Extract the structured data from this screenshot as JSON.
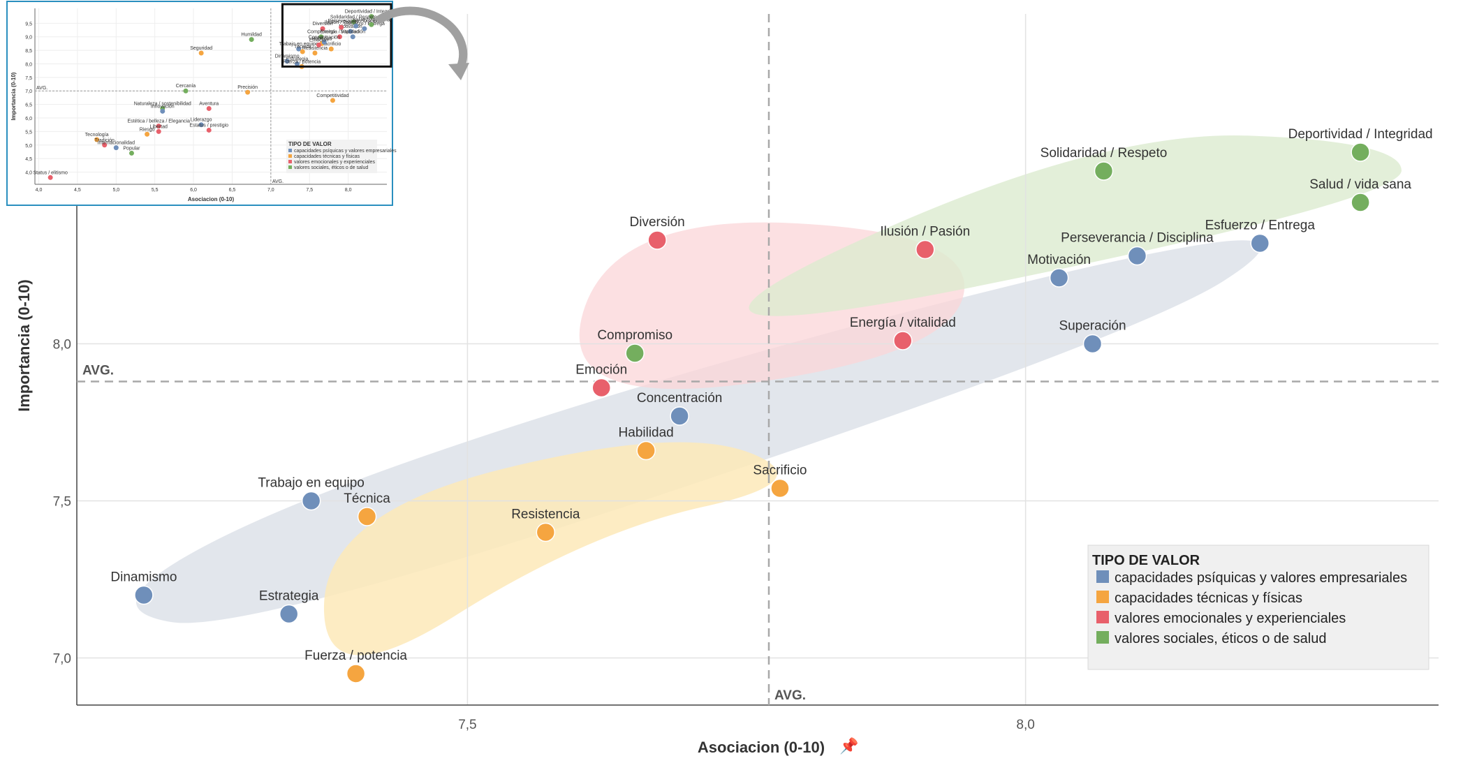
{
  "colors": {
    "blue": "#6f8fba",
    "orange": "#f5a540",
    "red": "#e8606b",
    "green": "#74ae5e",
    "hull_blue": "#d8dde6",
    "hull_orange": "#fde9b8",
    "hull_red": "#fbd6d8",
    "hull_green": "#dcebcf",
    "inset_border": "#2a8fbf"
  },
  "chart_data": {
    "type": "scatter",
    "xlabel": "Asociacion (0-10)",
    "ylabel": "Importancia (0-10)",
    "xlim": [
      7.15,
      8.37
    ],
    "ylim": [
      6.85,
      9.05
    ],
    "x_ticks": [
      {
        "value": 7.5,
        "label": "7,5"
      },
      {
        "value": 8.0,
        "label": "8,0"
      }
    ],
    "y_ticks": [
      {
        "value": 7.0,
        "label": "7,0"
      },
      {
        "value": 7.5,
        "label": "7,5"
      },
      {
        "value": 8.0,
        "label": "8,0"
      }
    ],
    "avg_x": 7.77,
    "avg_y": 7.88,
    "avg_label": "AVG.",
    "grid": true,
    "legend": {
      "title": "TIPO DE VALOR",
      "position": "bottom-right",
      "entries": [
        {
          "label": "capacidades psíquicas y valores empresariales",
          "color": "blue"
        },
        {
          "label": "capacidades técnicas y físicas",
          "color": "orange"
        },
        {
          "label": "valores emocionales y experienciales",
          "color": "red"
        },
        {
          "label": "valores sociales, éticos o de salud",
          "color": "green"
        }
      ]
    },
    "points": [
      {
        "label": "Deportividad / Integridad",
        "x": 8.3,
        "y": 8.61,
        "group": "green",
        "label_pos": "above"
      },
      {
        "label": "Solidaridad / Respeto",
        "x": 8.07,
        "y": 8.55,
        "group": "green",
        "label_pos": "above"
      },
      {
        "label": "Salud / vida sana",
        "x": 8.3,
        "y": 8.45,
        "group": "green",
        "label_pos": "above"
      },
      {
        "label": "Esfuerzo / Entrega",
        "x": 8.21,
        "y": 8.32,
        "group": "blue",
        "label_pos": "above"
      },
      {
        "label": "Perseverancia / Disciplina",
        "x": 8.1,
        "y": 8.28,
        "group": "blue",
        "label_pos": "above"
      },
      {
        "label": "Motivación",
        "x": 8.03,
        "y": 8.21,
        "group": "blue",
        "label_pos": "above"
      },
      {
        "label": "Superación",
        "x": 8.06,
        "y": 8.0,
        "group": "blue",
        "label_pos": "above"
      },
      {
        "label": "Diversión",
        "x": 7.67,
        "y": 8.33,
        "group": "red",
        "label_pos": "above"
      },
      {
        "label": "Ilusión / Pasión",
        "x": 7.91,
        "y": 8.3,
        "group": "red",
        "label_pos": "above"
      },
      {
        "label": "Energía / vitalidad",
        "x": 7.89,
        "y": 8.01,
        "group": "red",
        "label_pos": "above"
      },
      {
        "label": "Compromiso",
        "x": 7.65,
        "y": 7.97,
        "group": "green",
        "label_pos": "above"
      },
      {
        "label": "Emoción",
        "x": 7.62,
        "y": 7.86,
        "group": "red",
        "label_pos": "above"
      },
      {
        "label": "Concentración",
        "x": 7.69,
        "y": 7.77,
        "group": "blue",
        "label_pos": "above"
      },
      {
        "label": "Habilidad",
        "x": 7.66,
        "y": 7.66,
        "group": "orange",
        "label_pos": "above"
      },
      {
        "label": "Sacrificio",
        "x": 7.78,
        "y": 7.54,
        "group": "orange",
        "label_pos": "above"
      },
      {
        "label": "Resistencia",
        "x": 7.57,
        "y": 7.4,
        "group": "orange",
        "label_pos": "above"
      },
      {
        "label": "Trabajo en equipo",
        "x": 7.36,
        "y": 7.5,
        "group": "blue",
        "label_pos": "above"
      },
      {
        "label": "Técnica",
        "x": 7.41,
        "y": 7.45,
        "group": "orange",
        "label_pos": "above"
      },
      {
        "label": "Dinamismo",
        "x": 7.21,
        "y": 7.2,
        "group": "blue",
        "label_pos": "above"
      },
      {
        "label": "Estrategia",
        "x": 7.34,
        "y": 7.14,
        "group": "blue",
        "label_pos": "above"
      },
      {
        "label": "Fuerza / potencia",
        "x": 7.4,
        "y": 6.95,
        "group": "orange",
        "label_pos": "above"
      }
    ]
  },
  "inset": {
    "xlabel": "Asociacion (0-10)",
    "ylabel": "Importancia (0-10)",
    "xlim": [
      3.95,
      8.5
    ],
    "ylim": [
      3.55,
      10.05
    ],
    "x_ticks": [
      "4,0",
      "4,5",
      "5,0",
      "5,5",
      "6,0",
      "6,5",
      "7,0",
      "7,5",
      "8,0"
    ],
    "y_ticks": [
      "4,0",
      "4,5",
      "5,0",
      "5,5",
      "6,0",
      "6,5",
      "7,0",
      "7,5",
      "8,0",
      "8,5",
      "9,0",
      "9,5"
    ],
    "avg_label": "AVG.",
    "legend_title": "TIPO DE VALOR",
    "legend_entries": [
      {
        "label": "capacidades psíquicas y valores empresariales",
        "color": "blue"
      },
      {
        "label": "capacidades técnicas y físicas",
        "color": "orange"
      },
      {
        "label": "valores emocionales y experienciales",
        "color": "red"
      },
      {
        "label": "valores sociales, éticos o de salud",
        "color": "green"
      }
    ],
    "points": [
      {
        "label": "Humildad",
        "x": 6.75,
        "y": 8.9,
        "group": "green"
      },
      {
        "label": "Seguridad",
        "x": 6.1,
        "y": 8.4,
        "group": "orange"
      },
      {
        "label": "Cercanía",
        "x": 5.9,
        "y": 7.0,
        "group": "green"
      },
      {
        "label": "Precisión",
        "x": 6.7,
        "y": 6.95,
        "group": "orange"
      },
      {
        "label": "Naturaleza / sostenibilidad",
        "x": 5.6,
        "y": 6.35,
        "group": "green"
      },
      {
        "label": "Innovación",
        "x": 5.6,
        "y": 6.25,
        "group": "blue"
      },
      {
        "label": "Aventura",
        "x": 6.2,
        "y": 6.35,
        "group": "red"
      },
      {
        "label": "Liderazgo",
        "x": 6.1,
        "y": 5.75,
        "group": "blue"
      },
      {
        "label": "Estatus / prestigio",
        "x": 6.2,
        "y": 5.55,
        "group": "red"
      },
      {
        "label": "Estética / belleza / Elegancia",
        "x": 5.55,
        "y": 5.7,
        "group": "red"
      },
      {
        "label": "Libertad",
        "x": 5.55,
        "y": 5.5,
        "group": "red"
      },
      {
        "label": "Riesgo",
        "x": 5.4,
        "y": 5.4,
        "group": "orange"
      },
      {
        "label": "Tecnología",
        "x": 4.75,
        "y": 5.2,
        "group": "orange"
      },
      {
        "label": "Tradición",
        "x": 4.85,
        "y": 5.0,
        "group": "red"
      },
      {
        "label": "Internacionalidad",
        "x": 5.0,
        "y": 4.9,
        "group": "blue"
      },
      {
        "label": "Popular",
        "x": 5.2,
        "y": 4.7,
        "group": "green"
      },
      {
        "label": "Status / elitismo",
        "x": 4.15,
        "y": 3.8,
        "group": "red"
      },
      {
        "label": "Competitividad",
        "x": 7.8,
        "y": 6.65,
        "group": "orange"
      },
      {
        "label": "Deportividad / Integridad",
        "x": 8.3,
        "y": 9.75,
        "group": "green"
      },
      {
        "label": "Diversión",
        "x": 7.67,
        "y": 9.3,
        "group": "red"
      },
      {
        "label": "Trabajo en equipo",
        "x": 7.36,
        "y": 8.55,
        "group": "blue"
      },
      {
        "label": "Dinamismo",
        "x": 7.21,
        "y": 8.1,
        "group": "blue"
      },
      {
        "label": "Estrategia",
        "x": 7.34,
        "y": 8.0,
        "group": "blue"
      },
      {
        "label": "Fuerza / potencia",
        "x": 7.4,
        "y": 7.9,
        "group": "orange"
      },
      {
        "label": "Compromiso",
        "x": 7.65,
        "y": 9.0,
        "group": "green"
      },
      {
        "label": "Superación",
        "x": 8.06,
        "y": 9.0,
        "group": "blue"
      },
      {
        "label": "Motivación",
        "x": 8.03,
        "y": 9.2,
        "group": "blue"
      },
      {
        "label": "Esfuerzo / Entrega",
        "x": 8.21,
        "y": 9.3,
        "group": "blue"
      },
      {
        "label": "Solidaridad / Respeto",
        "x": 8.07,
        "y": 9.55,
        "group": "green"
      },
      {
        "label": "Energía / vitalidad",
        "x": 7.89,
        "y": 9.0,
        "group": "red"
      },
      {
        "label": "Sacrificio",
        "x": 7.78,
        "y": 8.55,
        "group": "orange"
      },
      {
        "label": "Resistencia",
        "x": 7.57,
        "y": 8.4,
        "group": "orange"
      },
      {
        "label": "Técnica",
        "x": 7.41,
        "y": 8.45,
        "group": "orange"
      },
      {
        "label": "Habilidad",
        "x": 7.66,
        "y": 8.75,
        "group": "orange"
      },
      {
        "label": "Concentración",
        "x": 7.69,
        "y": 8.8,
        "group": "blue"
      },
      {
        "label": "Emoción",
        "x": 7.62,
        "y": 8.7,
        "group": "red"
      },
      {
        "label": "Ilusión / Pasión",
        "x": 7.91,
        "y": 9.35,
        "group": "red"
      },
      {
        "label": "Salud / vida sana",
        "x": 8.3,
        "y": 9.45,
        "group": "green"
      },
      {
        "label": "Perseverancia / Disciplina",
        "x": 8.1,
        "y": 9.4,
        "group": "blue"
      }
    ]
  }
}
